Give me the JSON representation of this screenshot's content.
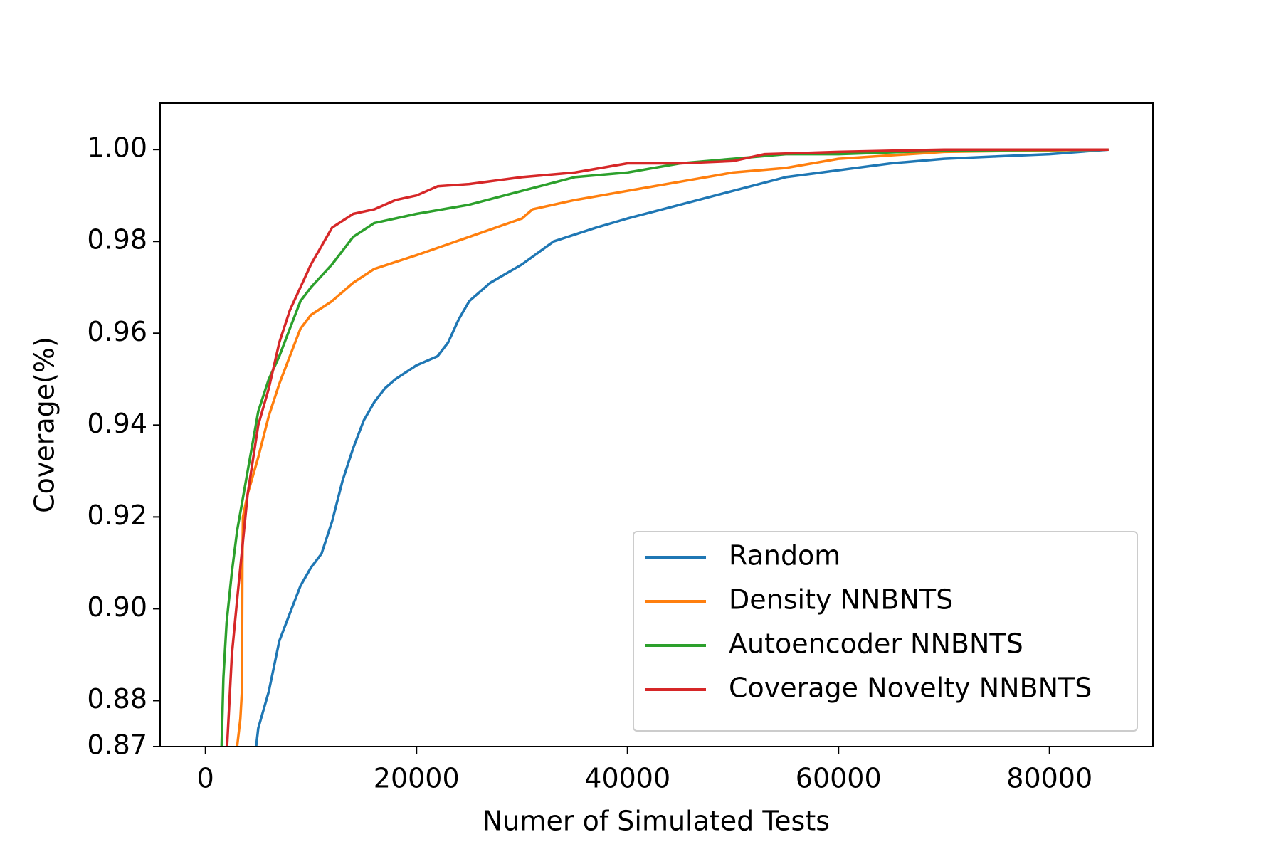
{
  "chart_data": {
    "type": "line",
    "xlabel": "Numer of Simulated Tests",
    "ylabel": "Coverage(%)",
    "xlim": [
      -4300,
      89800
    ],
    "xticks": [
      0,
      20000,
      40000,
      60000,
      80000
    ],
    "ylim": [
      0.87,
      1.0101
    ],
    "yticks": [
      0.87,
      0.88,
      {
        "value": 0.9,
        "label": "0.90"
      },
      0.92,
      0.94,
      0.96,
      0.98,
      {
        "value": 1.0,
        "label": "1.00"
      }
    ],
    "legend": "lower right",
    "series": [
      {
        "name": "Random",
        "color": "#1f77b4",
        "x": [
          4700,
          5000,
          6000,
          7000,
          8000,
          9000,
          10000,
          11000,
          12000,
          13000,
          14000,
          15000,
          16000,
          17000,
          18000,
          20000,
          22000,
          23000,
          24000,
          25000,
          27000,
          30000,
          33000,
          37000,
          40000,
          45000,
          50000,
          55000,
          60000,
          65000,
          70000,
          75000,
          80000,
          85600
        ],
        "values": [
          0.868,
          0.874,
          0.882,
          0.893,
          0.899,
          0.905,
          0.909,
          0.912,
          0.919,
          0.928,
          0.935,
          0.941,
          0.945,
          0.948,
          0.95,
          0.953,
          0.955,
          0.958,
          0.963,
          0.967,
          0.971,
          0.975,
          0.98,
          0.983,
          0.985,
          0.988,
          0.991,
          0.994,
          0.9955,
          0.997,
          0.998,
          0.9985,
          0.999,
          1.0
        ]
      },
      {
        "name": "Density NNBNTS",
        "color": "#ff7f0e",
        "x": [
          2900,
          3300,
          3450,
          3500,
          3550,
          4000,
          5000,
          6000,
          7000,
          8000,
          9000,
          10000,
          12000,
          14000,
          16000,
          20000,
          25000,
          30000,
          31000,
          35000,
          40000,
          45000,
          50000,
          55000,
          60000,
          70000,
          85600
        ],
        "values": [
          0.868,
          0.876,
          0.882,
          0.91,
          0.92,
          0.925,
          0.933,
          0.942,
          0.949,
          0.955,
          0.961,
          0.964,
          0.967,
          0.971,
          0.974,
          0.977,
          0.981,
          0.985,
          0.987,
          0.989,
          0.991,
          0.993,
          0.995,
          0.996,
          0.998,
          0.9995,
          1.0
        ]
      },
      {
        "name": "Autoencoder NNBNTS",
        "color": "#2ca02c",
        "x": [
          1500,
          1700,
          2000,
          2500,
          3000,
          4000,
          5000,
          6000,
          7000,
          8000,
          9000,
          10000,
          12000,
          14000,
          16000,
          20000,
          25000,
          30000,
          35000,
          40000,
          45000,
          50000,
          55000,
          60000,
          70000,
          85600
        ],
        "values": [
          0.868,
          0.885,
          0.897,
          0.908,
          0.917,
          0.93,
          0.943,
          0.95,
          0.955,
          0.961,
          0.967,
          0.97,
          0.975,
          0.981,
          0.984,
          0.986,
          0.988,
          0.991,
          0.994,
          0.995,
          0.997,
          0.998,
          0.999,
          0.999,
          0.9998,
          1.0
        ]
      },
      {
        "name": "Coverage Novelty NNBNTS",
        "color": "#d62728",
        "x": [
          2000,
          2500,
          3000,
          4000,
          5000,
          6000,
          7000,
          8000,
          9000,
          10000,
          11000,
          12000,
          14000,
          16000,
          18000,
          20000,
          22000,
          25000,
          30000,
          35000,
          40000,
          45000,
          50000,
          53000,
          60000,
          70000,
          85600
        ],
        "values": [
          0.868,
          0.89,
          0.902,
          0.925,
          0.94,
          0.948,
          0.958,
          0.965,
          0.97,
          0.975,
          0.979,
          0.983,
          0.986,
          0.987,
          0.989,
          0.99,
          0.992,
          0.9925,
          0.994,
          0.995,
          0.997,
          0.997,
          0.9975,
          0.999,
          0.9995,
          1.0,
          1.0
        ]
      }
    ]
  }
}
